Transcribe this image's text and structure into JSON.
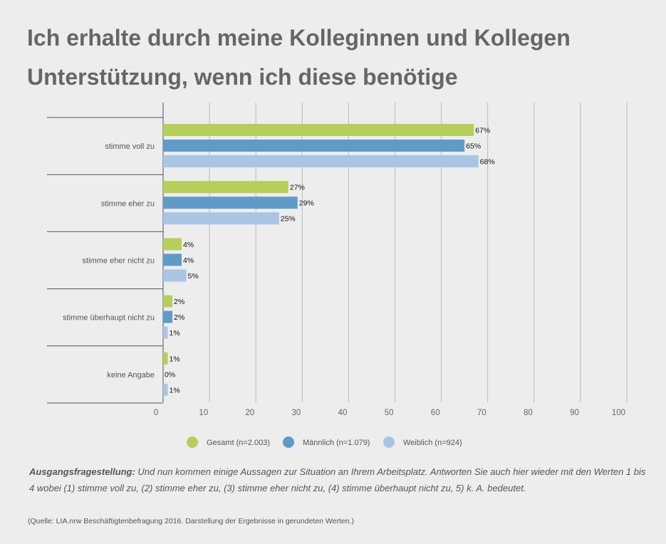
{
  "title_line1": "Ich erhalte durch meine Kolleginnen und Kollegen",
  "title_line2": "Unterstützung, wenn ich diese benötige",
  "chart_data": {
    "type": "bar",
    "orientation": "horizontal",
    "categories": [
      "stimme voll zu",
      "stimme eher zu",
      "stimme eher nicht zu",
      "stimme überhaupt nicht zu",
      "keine Angabe"
    ],
    "series": [
      {
        "name": "Gesamt (n=2.003)",
        "color": "#b5cf5a",
        "values": [
          67,
          27,
          4,
          2,
          1
        ]
      },
      {
        "name": "Männlich (n=1.079)",
        "color": "#5f9bc9",
        "values": [
          65,
          29,
          4,
          2,
          0
        ]
      },
      {
        "name": "Weiblich (n=924)",
        "color": "#a9c5e3",
        "values": [
          68,
          25,
          5,
          1,
          1
        ]
      }
    ],
    "value_suffix": "%",
    "xlim": [
      0,
      100
    ],
    "xticks": [
      0,
      10,
      20,
      30,
      40,
      50,
      60,
      70,
      80,
      90,
      100
    ],
    "grid": true,
    "legend": "bottom"
  },
  "note_label": "Ausgangsfragestellung:",
  "note_text": " Und nun kommen einige Aussagen zur Situation an Ihrem Arbeitsplatz. Antworten Sie auch hier wieder mit den Werten 1 bis 4 wobei (1) stimme voll zu, (2) stimme eher zu, (3) stimme eher nicht zu, (4) stimme überhaupt nicht zu,  5) k. A. bedeutet.",
  "source": "(Quelle: LIA.nrw Beschäftigtenbefragung 2016. Darstellung der Ergebnisse in gerundeten Werten.)"
}
